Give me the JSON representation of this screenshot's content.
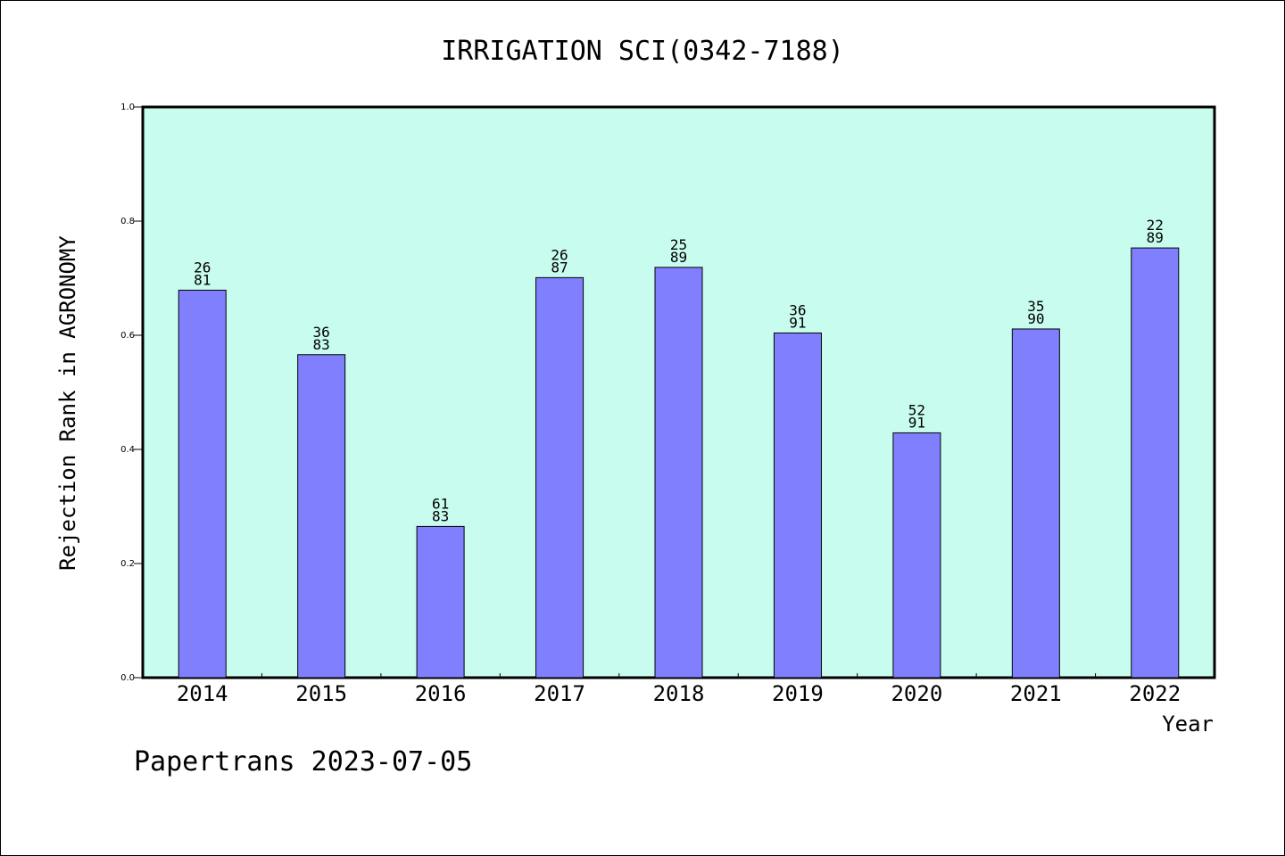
{
  "chart_data": {
    "type": "bar",
    "title": "IRRIGATION SCI(0342-7188)",
    "xlabel": "Year",
    "ylabel": "Rejection Rank in AGRONOMY",
    "ylim": [
      0,
      1.0
    ],
    "yticks": [
      "0.0",
      "0.2",
      "0.4",
      "0.6",
      "0.8",
      "1.0"
    ],
    "categories": [
      "2014",
      "2015",
      "2016",
      "2017",
      "2018",
      "2019",
      "2020",
      "2021",
      "2022"
    ],
    "values": [
      0.679,
      0.566,
      0.265,
      0.701,
      0.719,
      0.604,
      0.429,
      0.611,
      0.753
    ],
    "labels_top": [
      "26",
      "36",
      "61",
      "26",
      "25",
      "36",
      "52",
      "35",
      "22"
    ],
    "labels_bottom": [
      "81",
      "83",
      "83",
      "87",
      "89",
      "91",
      "91",
      "90",
      "89"
    ],
    "grid": false,
    "legend": "none",
    "colors": {
      "plot_background": "#c8fcee",
      "bar_fill": "#8080ff",
      "bar_stroke": "#000000"
    }
  },
  "footer": {
    "credit": "Papertrans 2023-07-05"
  }
}
